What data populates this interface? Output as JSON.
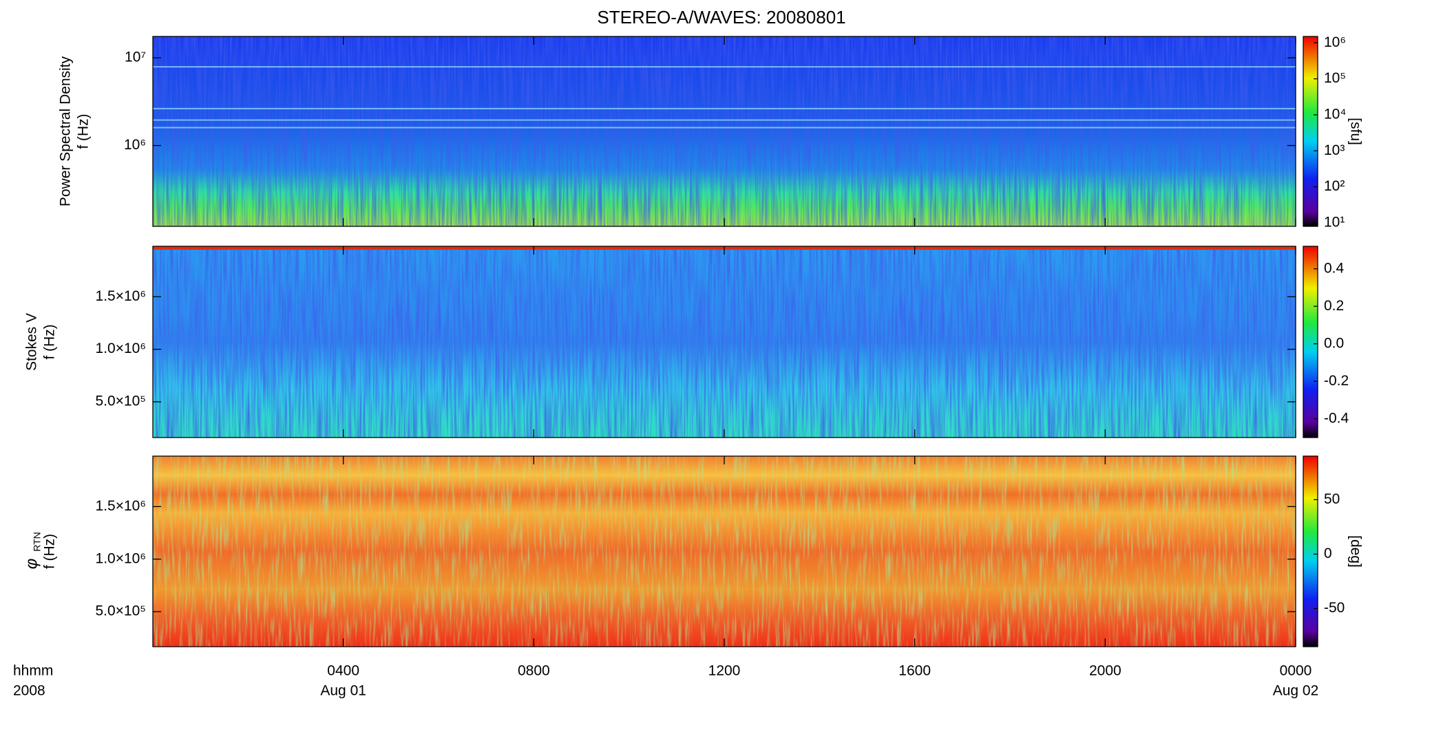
{
  "chart_data": [
    {
      "type": "spectrogram",
      "title": "STEREO-A/WAVES: 20080801",
      "ylabel": [
        "Power Spectral Density",
        "f (Hz)"
      ],
      "ylog": true,
      "ylim": [
        120000,
        17500000
      ],
      "yticks": [
        {
          "value": 1000000,
          "label": "10⁶"
        },
        {
          "value": 10000000,
          "label": "10⁷"
        }
      ],
      "clog": true,
      "clim": [
        8,
        1500000
      ],
      "cticks": [
        {
          "value": 10,
          "label": "10¹"
        },
        {
          "value": 100,
          "label": "10²"
        },
        {
          "value": 1000,
          "label": "10³"
        },
        {
          "value": 10000,
          "label": "10⁴"
        },
        {
          "value": 100000,
          "label": "10⁵"
        },
        {
          "value": 1000000,
          "label": "10⁶"
        }
      ],
      "clabel": "[sfu]"
    },
    {
      "type": "spectrogram",
      "ylabel": [
        "Stokes V",
        "f (Hz)"
      ],
      "ylog": false,
      "ylim": [
        160000,
        1980000
      ],
      "yticks": [
        {
          "value": 500000,
          "label": "5.0×10⁵"
        },
        {
          "value": 1000000,
          "label": "1.0×10⁶"
        },
        {
          "value": 1500000,
          "label": "1.5×10⁶"
        }
      ],
      "clog": false,
      "clim": [
        -0.5,
        0.52
      ],
      "cticks": [
        -0.4,
        -0.2,
        {
          "value": 0,
          "label": "0.0"
        },
        0.2,
        0.4
      ]
    },
    {
      "type": "spectrogram",
      "ylabel": [
        "φ",
        "f (Hz)"
      ],
      "ylabel_subscript": "RTN",
      "ylog": false,
      "ylim": [
        167000,
        1980000
      ],
      "yticks": [
        {
          "value": 500000,
          "label": "5.0×10⁵"
        },
        {
          "value": 1000000,
          "label": "1.0×10⁶"
        },
        {
          "value": 1500000,
          "label": "1.5×10⁶"
        }
      ],
      "clog": false,
      "clim": [
        -85,
        90
      ],
      "cticks": [
        -50,
        0,
        50
      ],
      "clabel": "[deg]",
      "xlim": [
        0,
        24
      ],
      "xticks": [
        {
          "value": 4,
          "label": "0400"
        },
        {
          "value": 8,
          "label": "0800"
        },
        {
          "value": 12,
          "label": "1200"
        },
        {
          "value": 16,
          "label": "1600"
        },
        {
          "value": 20,
          "label": "2000"
        },
        {
          "value": 24,
          "label": "0000"
        }
      ],
      "date_labels": [
        {
          "value": 4,
          "label": "Aug 01"
        },
        {
          "value": 24,
          "label": "Aug 02"
        }
      ],
      "xlabel": "hhmm",
      "xlabel_year": "2008"
    }
  ]
}
